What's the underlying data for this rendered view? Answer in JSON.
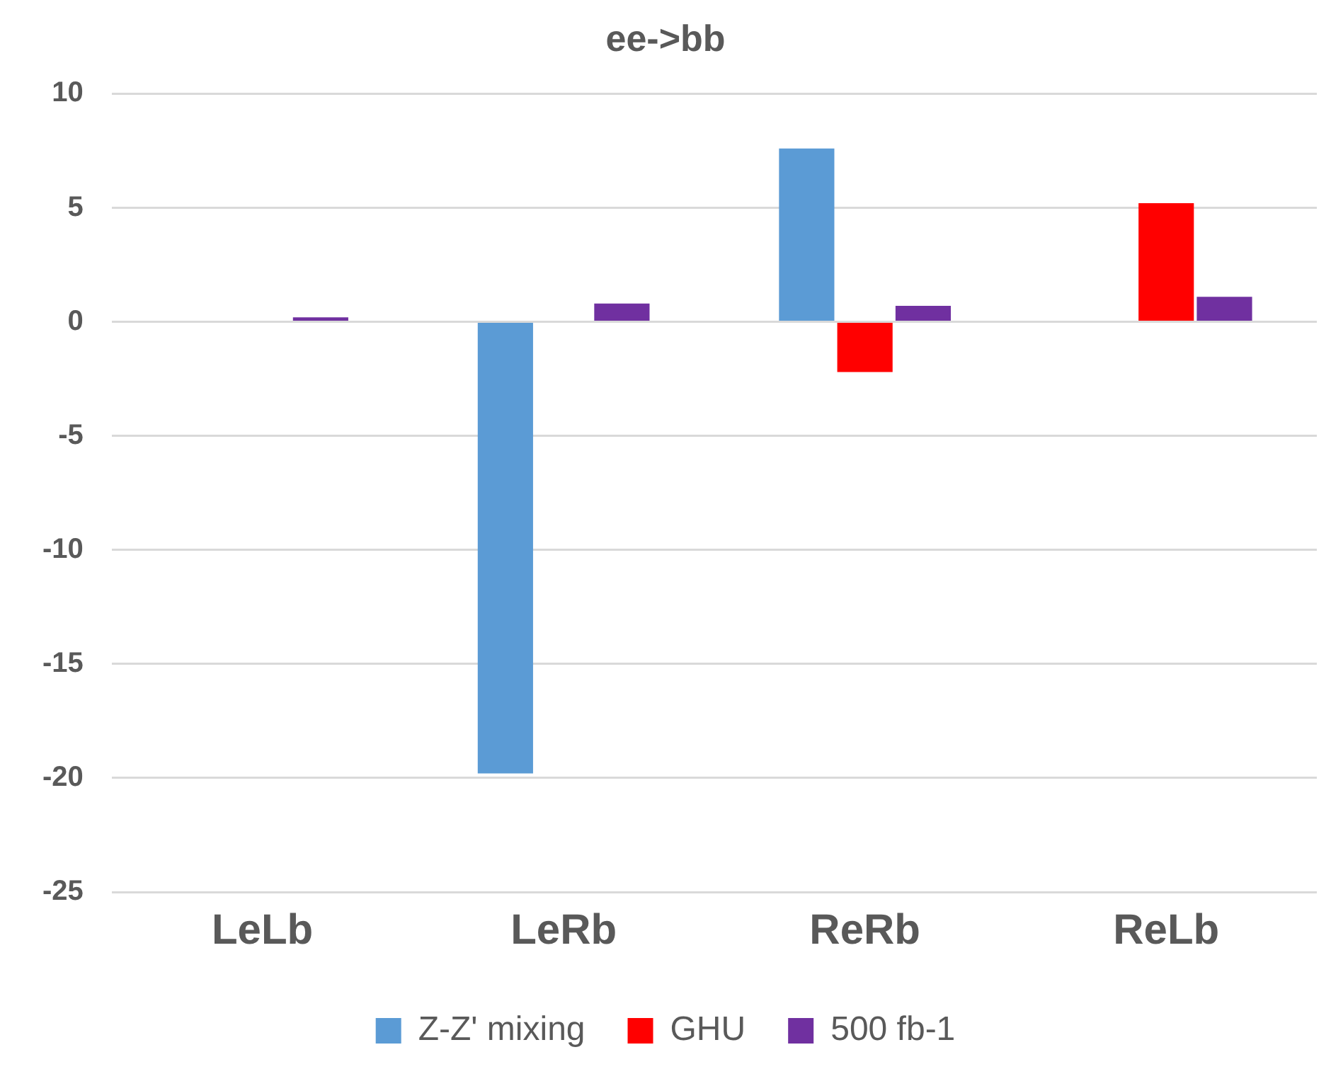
{
  "chart_data": {
    "type": "bar",
    "title": "ee->bb",
    "categories": [
      "LeLb",
      "LeRb",
      "ReRb",
      "ReLb"
    ],
    "series": [
      {
        "name": "Z-Z' mixing",
        "color": "#5b9bd5",
        "values": [
          null,
          -19.8,
          7.6,
          null
        ]
      },
      {
        "name": "GHU",
        "color": "#ff0000",
        "values": [
          null,
          null,
          -2.2,
          5.2
        ]
      },
      {
        "name": "500 fb-1",
        "color": "#7030a0",
        "values": [
          0.2,
          0.8,
          0.7,
          1.1
        ]
      }
    ],
    "ylim": [
      -25,
      10
    ],
    "yticks": [
      -25,
      -20,
      -15,
      -10,
      -5,
      0,
      5,
      10
    ],
    "grid": "y",
    "legend": "bottom"
  }
}
